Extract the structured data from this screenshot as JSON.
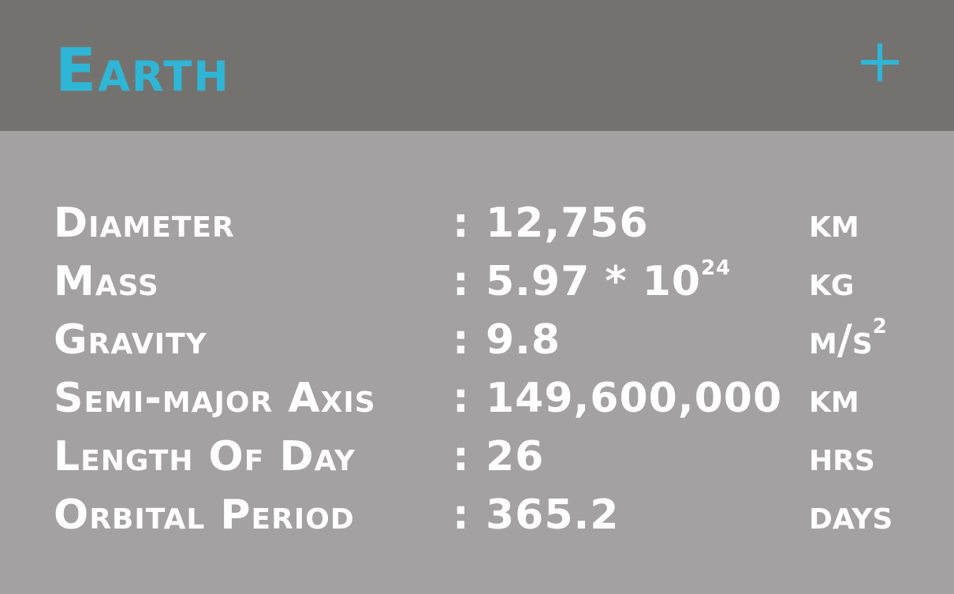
{
  "header": {
    "title": "Earth",
    "add_icon": "plus-icon",
    "accent_color": "#2fb6d6"
  },
  "colors": {
    "header_bg": "#74726f",
    "body_bg": "#a3a1a2",
    "text": "#ffffff"
  },
  "stats": [
    {
      "label": "Diameter",
      "separator": ":",
      "value": "12,756",
      "value_exp": "",
      "unit": "km",
      "unit_exp": ""
    },
    {
      "label": "Mass",
      "separator": ":",
      "value": "5.97 * 10",
      "value_exp": "24",
      "unit": "kg",
      "unit_exp": ""
    },
    {
      "label": "Gravity",
      "separator": ":",
      "value": "9.8",
      "value_exp": "",
      "unit": "m/s",
      "unit_exp": "2"
    },
    {
      "label": "Semi-major Axis",
      "separator": ":",
      "value": "149,600,000",
      "value_exp": "",
      "unit": "km",
      "unit_exp": ""
    },
    {
      "label": "Length Of Day",
      "separator": ":",
      "value": "26",
      "value_exp": "",
      "unit": "hrs",
      "unit_exp": ""
    },
    {
      "label": "Orbital Period",
      "separator": ":",
      "value": "365.2",
      "value_exp": "",
      "unit": "days",
      "unit_exp": ""
    }
  ]
}
